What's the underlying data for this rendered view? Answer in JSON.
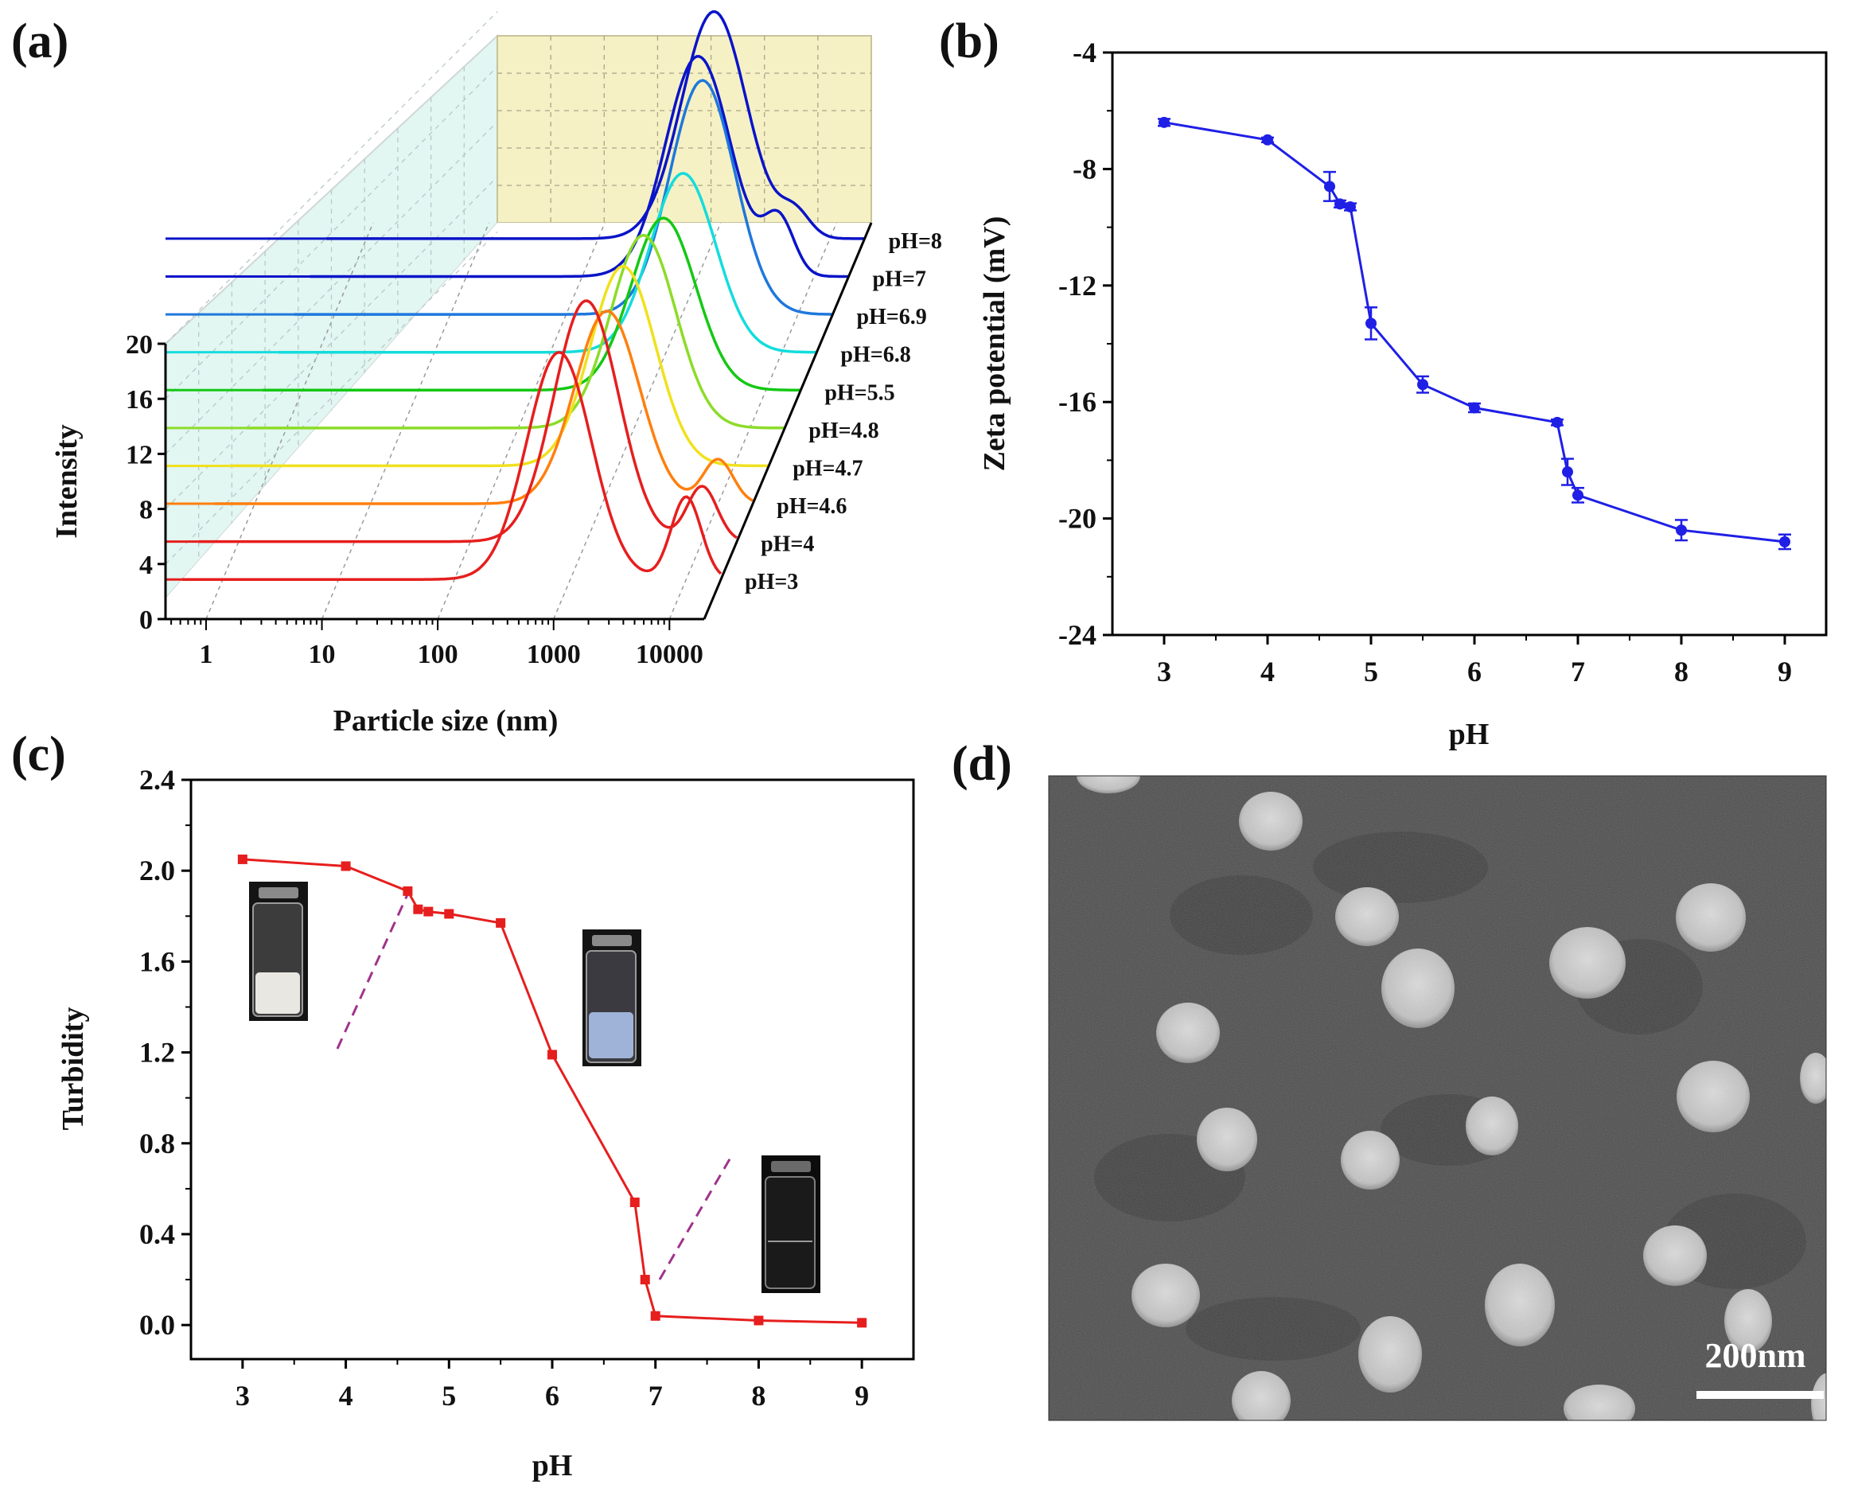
{
  "panels": {
    "a": {
      "label": "(a)"
    },
    "b": {
      "label": "(b)"
    },
    "c": {
      "label": "(c)"
    },
    "d": {
      "label": "(d)"
    }
  },
  "colors": {
    "blue_series": "#1f1fe6",
    "red_series": "#e61e1e",
    "dashed_guide": "#a0338a",
    "back_wall": "#f6f1c4",
    "side_wall": "#e2f6f2",
    "floor": "#ffffff",
    "tem_bg": "#4a4a4a",
    "tem_particle": "#cfcfcf"
  },
  "chart_data": [
    {
      "panel": "a",
      "type": "line",
      "subtype": "3d-waterfall",
      "title": "",
      "xlabel": "Particle size (nm)",
      "ylabel": "Intensity",
      "x_scale": "log",
      "x_ticks": [
        "1",
        "10",
        "100",
        "1000",
        "10000"
      ],
      "y_ticks": [
        "0",
        "4",
        "8",
        "12",
        "16",
        "20"
      ],
      "ylim": [
        0,
        20
      ],
      "series": [
        {
          "name": "pH=3",
          "color": "#e61e1e",
          "peaks": [
            {
              "size_nm": 800,
              "height": 16.5
            },
            {
              "size_nm": 10000,
              "height": 6.0
            }
          ]
        },
        {
          "name": "pH=4",
          "color": "#e61e1e",
          "peaks": [
            {
              "size_nm": 1000,
              "height": 17.5
            },
            {
              "size_nm": 10000,
              "height": 4.0
            }
          ]
        },
        {
          "name": "pH=4.6",
          "color": "#ff7f0e",
          "peaks": [
            {
              "size_nm": 1100,
              "height": 14.0
            },
            {
              "size_nm": 10000,
              "height": 3.2
            }
          ]
        },
        {
          "name": "pH=4.7",
          "color": "#f0e11e",
          "peaks": [
            {
              "size_nm": 1100,
              "height": 14.5
            }
          ]
        },
        {
          "name": "pH=4.8",
          "color": "#8cdc28",
          "peaks": [
            {
              "size_nm": 1200,
              "height": 14.0
            }
          ]
        },
        {
          "name": "pH=5.5",
          "color": "#14c814",
          "peaks": [
            {
              "size_nm": 1300,
              "height": 12.5
            }
          ]
        },
        {
          "name": "pH=6.8",
          "color": "#14dcdc",
          "peaks": [
            {
              "size_nm": 1400,
              "height": 13.0
            }
          ]
        },
        {
          "name": "pH=6.9",
          "color": "#1e78dc",
          "peaks": [
            {
              "size_nm": 1500,
              "height": 17.0
            }
          ]
        },
        {
          "name": "pH=7",
          "color": "#0a14c8",
          "peaks": [
            {
              "size_nm": 1000,
              "height": 16.0
            },
            {
              "size_nm": 5000,
              "height": 4.0
            }
          ]
        },
        {
          "name": "pH=8",
          "color": "#0a14c8",
          "peaks": [
            {
              "size_nm": 1000,
              "height": 16.5
            },
            {
              "size_nm": 5000,
              "height": 1.8
            }
          ]
        }
      ]
    },
    {
      "panel": "b",
      "type": "line",
      "title": "",
      "xlabel": "pH",
      "ylabel": "Zeta potential (mV)",
      "xlim": [
        2.5,
        9.4
      ],
      "ylim": [
        -24,
        -4
      ],
      "x_ticks": [
        "3",
        "4",
        "5",
        "6",
        "7",
        "8",
        "9"
      ],
      "y_ticks": [
        "-4",
        "-8",
        "-12",
        "-16",
        "-20",
        "-24"
      ],
      "series": [
        {
          "name": "Zeta potential",
          "color": "#1f1fe6",
          "x": [
            3,
            4,
            4.6,
            4.7,
            4.8,
            5,
            5.5,
            6,
            6.8,
            6.9,
            7,
            8,
            9
          ],
          "y": [
            -6.4,
            -7.0,
            -8.6,
            -9.2,
            -9.3,
            -13.3,
            -15.4,
            -16.2,
            -16.7,
            -18.4,
            -19.2,
            -20.4,
            -20.8
          ],
          "err": [
            0.12,
            0.08,
            0.5,
            0.12,
            0.12,
            0.55,
            0.28,
            0.15,
            0.1,
            0.45,
            0.25,
            0.35,
            0.25
          ]
        }
      ]
    },
    {
      "panel": "c",
      "type": "line",
      "title": "",
      "xlabel": "pH",
      "ylabel": "Turbidity",
      "xlim": [
        2.5,
        9.5
      ],
      "ylim": [
        -0.15,
        2.4
      ],
      "x_ticks": [
        "3",
        "4",
        "5",
        "6",
        "7",
        "8",
        "9"
      ],
      "y_ticks": [
        "0.0",
        "0.4",
        "0.8",
        "1.2",
        "1.6",
        "2.0",
        "2.4"
      ],
      "series": [
        {
          "name": "Turbidity",
          "color": "#e61e1e",
          "x": [
            3,
            4,
            4.6,
            4.7,
            4.8,
            5,
            5.5,
            6,
            6.8,
            6.9,
            7,
            8,
            9
          ],
          "y": [
            2.05,
            2.02,
            1.91,
            1.83,
            1.82,
            1.81,
            1.77,
            1.19,
            0.54,
            0.2,
            0.04,
            0.02,
            0.01
          ]
        }
      ],
      "insets": [
        "turbid-vial",
        "bluish-vial",
        "clear-vial"
      ]
    }
  ],
  "tem": {
    "scale_bar_label": "200nm"
  }
}
